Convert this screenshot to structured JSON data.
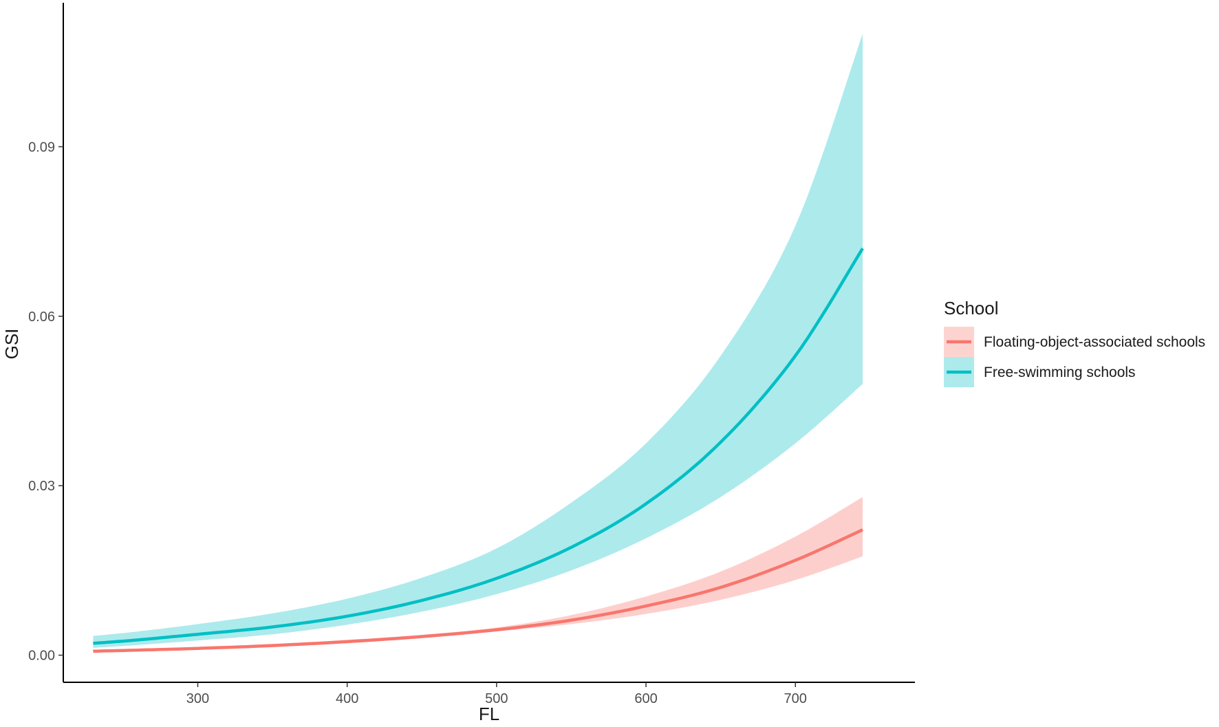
{
  "chart_data": {
    "type": "line",
    "title": "",
    "xlabel": "FL",
    "ylabel": "GSI",
    "xlim": [
      210,
      780
    ],
    "ylim": [
      -0.0048,
      0.115
    ],
    "x_ticks": [
      300,
      400,
      500,
      600,
      700
    ],
    "x_tick_labels": [
      "300",
      "400",
      "500",
      "600",
      "700"
    ],
    "y_ticks": [
      0.0,
      0.03,
      0.06,
      0.09
    ],
    "y_tick_labels": [
      "0.00",
      "0.03",
      "0.06",
      "0.09"
    ],
    "grid": false,
    "legend": {
      "title": "School",
      "position": "right"
    },
    "x": [
      230,
      260,
      300,
      350,
      400,
      450,
      500,
      550,
      600,
      650,
      700,
      745
    ],
    "series": [
      {
        "name": "Floating-object-associated schools",
        "color": "#f8766d",
        "fill_color": "#f8766d",
        "values": [
          0.0007,
          0.0009,
          0.0012,
          0.0017,
          0.0024,
          0.0033,
          0.0045,
          0.0062,
          0.0087,
          0.012,
          0.0168,
          0.0222
        ],
        "lower": [
          0.0005,
          0.0007,
          0.001,
          0.0015,
          0.0021,
          0.003,
          0.0042,
          0.0055,
          0.0073,
          0.0098,
          0.0133,
          0.0175
        ],
        "upper": [
          0.0009,
          0.0011,
          0.0014,
          0.002,
          0.0027,
          0.0036,
          0.0049,
          0.0071,
          0.0104,
          0.0148,
          0.021,
          0.028
        ]
      },
      {
        "name": "Free-swimming schools",
        "color": "#00bfc4",
        "fill_color": "#00bfc4",
        "values": [
          0.0021,
          0.0027,
          0.0037,
          0.005,
          0.0069,
          0.0097,
          0.0136,
          0.0191,
          0.0268,
          0.0377,
          0.053,
          0.072
        ],
        "lower": [
          0.0013,
          0.0018,
          0.0026,
          0.0037,
          0.0054,
          0.0077,
          0.0108,
          0.015,
          0.0207,
          0.028,
          0.0375,
          0.048
        ],
        "upper": [
          0.0034,
          0.0042,
          0.0055,
          0.0074,
          0.01,
          0.0137,
          0.0189,
          0.027,
          0.0375,
          0.053,
          0.076,
          0.11
        ]
      }
    ]
  }
}
